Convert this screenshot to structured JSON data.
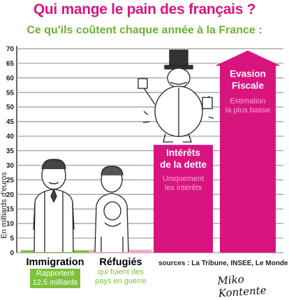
{
  "title": "Qui mange le pain des français ?",
  "subtitle": "Ce qu'ils coûtent chaque année à la France :",
  "chart_data": {
    "type": "bar",
    "ylabel": "En milliards d'euros",
    "ylim": [
      0,
      70
    ],
    "yticks": [
      "0",
      "5",
      "10",
      "15",
      "20",
      "25",
      "30",
      "35",
      "40",
      "45",
      "50",
      "55",
      "60",
      "65",
      "70"
    ],
    "grid": true,
    "colors": {
      "magenta": "#d8157f",
      "light_magenta": "#f5a6cf",
      "green": "#7cc23b"
    },
    "categories": [
      "Immigration",
      "Réfugiés",
      "Intérêts de la dette",
      "Evasion Fiscale"
    ],
    "values": [
      0,
      1,
      37,
      67
    ],
    "bar_labels": [
      {
        "title": "Immigration",
        "note": "Rapportent 12.5 milliards"
      },
      {
        "title": "Réfugiés",
        "note": "qui fuient des pays en guerre"
      },
      {
        "title": "Intérêts de la dette",
        "note": "Uniquement les intérêts"
      },
      {
        "title": "Evasion Fiscale",
        "note": "Estimation la plus basse"
      }
    ]
  },
  "captions": {
    "immigration_title": "Immigration",
    "immigration_note_1": "Rapportent",
    "immigration_note_2": "12.5 milliards",
    "refugees_title": "Réfugiés",
    "refugees_note_1": "qui fuient des",
    "refugees_note_2": "pays en guerre",
    "debt_title_1": "Intérêts",
    "debt_title_2": "de la dette",
    "debt_note_1": "Uniquement",
    "debt_note_2": "les intérêts",
    "evasion_title_1": "Evasion",
    "evasion_title_2": "Fiscale",
    "evasion_note_1": "Estimation",
    "evasion_note_2": "la plus basse"
  },
  "sources": "sources : La Tribune, INSEE, Le Monde",
  "signature": "Miko Kontente"
}
